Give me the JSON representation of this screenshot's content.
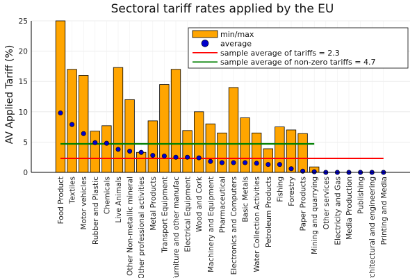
{
  "chart_data": {
    "type": "bar",
    "title": "Sectoral tariff rates applied by the EU",
    "xlabel": "",
    "ylabel": "AV Applied Tariff (%)",
    "ylim": [
      0,
      25
    ],
    "yticks": [
      0,
      5,
      10,
      15,
      20,
      25
    ],
    "grid": true,
    "legend_position": "top-right",
    "categories": [
      "Food Product",
      "Textiles",
      "Motor vehicles",
      "Rubber and Plastic",
      "Chemicals",
      "Live Animals",
      "Other Non-metallic mineral",
      "Other professional activities",
      "Metal Products",
      "Transport Equipment",
      "Furniture and other manufac",
      "Electrical Equipment",
      "Wood and Cork",
      "Machinery and Equipment",
      "Pharmaceutical",
      "Electronics and Computers",
      "Basic Metals",
      "Water Collection Activities",
      "Petroleum Products",
      "Fishing",
      "Forestry",
      "Paper Products",
      "Mining and quarrying",
      "Other services",
      "Electricity and Gas",
      "Media Production",
      "Publishing",
      "Architectural and engineering",
      "Printing and Media"
    ],
    "series": [
      {
        "name": "min/max",
        "kind": "bar",
        "color": "#FFA500",
        "values": [
          25,
          17,
          16,
          6.8,
          7.7,
          17.3,
          12,
          3.3,
          8.5,
          14.5,
          17,
          6.9,
          10,
          8,
          6.5,
          14,
          9,
          6.5,
          3.9,
          7.5,
          7,
          6.4,
          0.9,
          0,
          0,
          0,
          0,
          0,
          0
        ]
      },
      {
        "name": "average",
        "kind": "scatter",
        "color": "#0000CC",
        "values": [
          9.8,
          7.9,
          6.4,
          4.9,
          4.8,
          3.8,
          3.5,
          3.3,
          2.8,
          2.7,
          2.5,
          2.5,
          2.4,
          1.8,
          1.6,
          1.6,
          1.6,
          1.5,
          1.3,
          1.3,
          0.6,
          0.2,
          0.1,
          0,
          0,
          0,
          0,
          0,
          0
        ]
      },
      {
        "name": "sample average of tariffs = 2.3",
        "kind": "hline",
        "color": "#FF0000",
        "y": 2.3,
        "x_from": "Food Product",
        "x_to": "Printing and Media"
      },
      {
        "name": "sample average of non-zero tariffs = 4.7",
        "kind": "hline",
        "color": "#008000",
        "y": 4.7,
        "x_from": "Food Product",
        "x_to": "Mining and quarrying"
      }
    ]
  }
}
